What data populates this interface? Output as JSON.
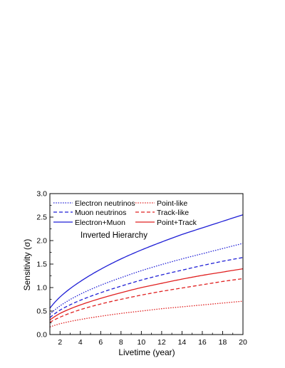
{
  "chart_data": {
    "type": "line",
    "title": "",
    "annotation": "Inverted Hierarchy",
    "xlabel": "Livetime (year)",
    "ylabel": "Sensitivity (σ)",
    "xlim": [
      1,
      20
    ],
    "ylim": [
      0,
      3.0
    ],
    "xticks": [
      2,
      4,
      6,
      8,
      10,
      12,
      14,
      16,
      18,
      20
    ],
    "yticks": [
      0.0,
      0.5,
      1.0,
      1.5,
      2.0,
      2.5,
      3.0
    ],
    "ytick_labels": [
      "0.0",
      "0.5",
      "1.0",
      "1.5",
      "2.0",
      "2.5",
      "3.0"
    ],
    "grid": false,
    "legend_position": "top-left",
    "x": [
      1,
      2,
      4,
      6,
      8,
      10,
      12,
      14,
      16,
      18,
      20
    ],
    "series": [
      {
        "name": "Electron neutrinos",
        "color": "#1f1fd6",
        "dash": "dotted",
        "values": [
          0.43,
          0.61,
          0.86,
          1.05,
          1.21,
          1.36,
          1.49,
          1.61,
          1.72,
          1.83,
          1.94
        ]
      },
      {
        "name": "Muon neutrinos",
        "color": "#1f1fd6",
        "dash": "dashed",
        "values": [
          0.36,
          0.52,
          0.73,
          0.89,
          1.03,
          1.16,
          1.27,
          1.37,
          1.47,
          1.56,
          1.64
        ]
      },
      {
        "name": "Electron+Muon",
        "color": "#1f1fd6",
        "dash": "solid",
        "values": [
          0.56,
          0.8,
          1.13,
          1.39,
          1.61,
          1.8,
          1.97,
          2.13,
          2.27,
          2.41,
          2.55
        ]
      },
      {
        "name": "Point-like",
        "color": "#e02020",
        "dash": "dotted",
        "values": [
          0.16,
          0.23,
          0.32,
          0.39,
          0.45,
          0.5,
          0.55,
          0.59,
          0.63,
          0.67,
          0.71
        ]
      },
      {
        "name": "Track-like",
        "color": "#e02020",
        "dash": "dashed",
        "values": [
          0.26,
          0.37,
          0.53,
          0.65,
          0.75,
          0.84,
          0.92,
          0.99,
          1.06,
          1.13,
          1.19
        ]
      },
      {
        "name": "Point+Track",
        "color": "#e02020",
        "dash": "solid",
        "values": [
          0.31,
          0.45,
          0.63,
          0.77,
          0.89,
          1.0,
          1.09,
          1.18,
          1.26,
          1.33,
          1.4
        ]
      }
    ]
  }
}
